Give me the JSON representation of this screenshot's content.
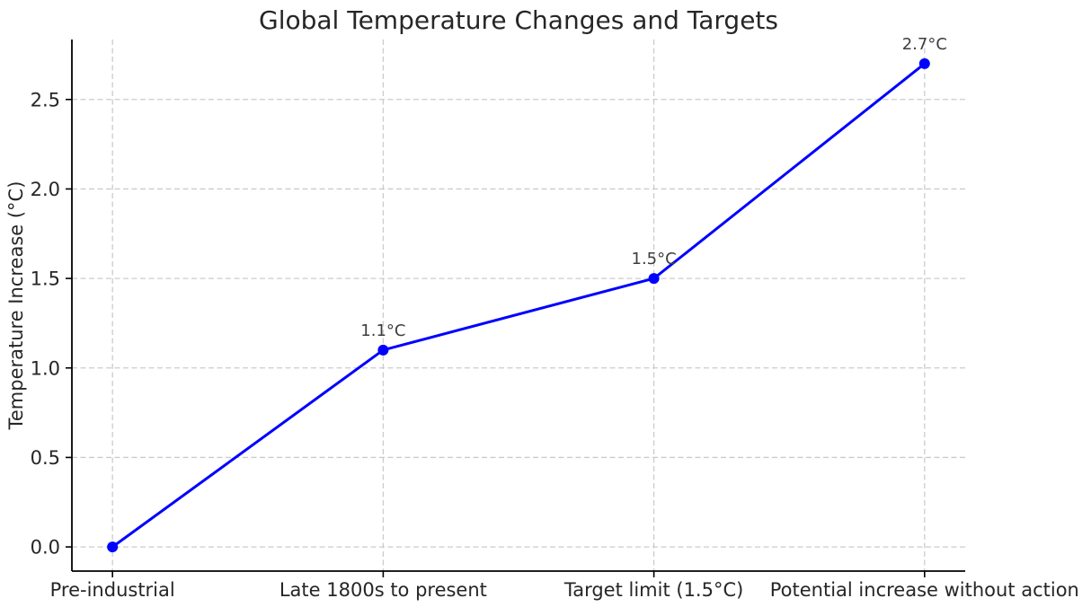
{
  "figure": {
    "background": "#ffffff"
  },
  "chart_data": {
    "type": "line",
    "title": "Global Temperature Changes and Targets",
    "xlabel": "",
    "ylabel": "Temperature Increase (°C)",
    "categories": [
      "Pre-industrial",
      "Late 1800s to present",
      "Target limit (1.5°C)",
      "Potential increase without action"
    ],
    "values": [
      0.0,
      1.1,
      1.5,
      2.7
    ],
    "point_labels": [
      "",
      "1.1°C",
      "1.5°C",
      "2.7°C"
    ],
    "y_ticks": [
      0.0,
      0.5,
      1.0,
      1.5,
      2.0,
      2.5
    ],
    "y_tick_labels": [
      "0.0",
      "0.5",
      "1.0",
      "1.5",
      "2.0",
      "2.5"
    ],
    "xlim": [
      -0.15,
      3.15
    ],
    "ylim": [
      -0.135,
      2.835
    ],
    "grid": true,
    "grid_style": "dashed",
    "legend": "none",
    "line_color": "#0000ff",
    "marker": "circle",
    "marker_color": "#0000ff",
    "grid_color": "#cccccc",
    "spine_color": "#000000",
    "visible_spines": [
      "left",
      "bottom"
    ]
  }
}
